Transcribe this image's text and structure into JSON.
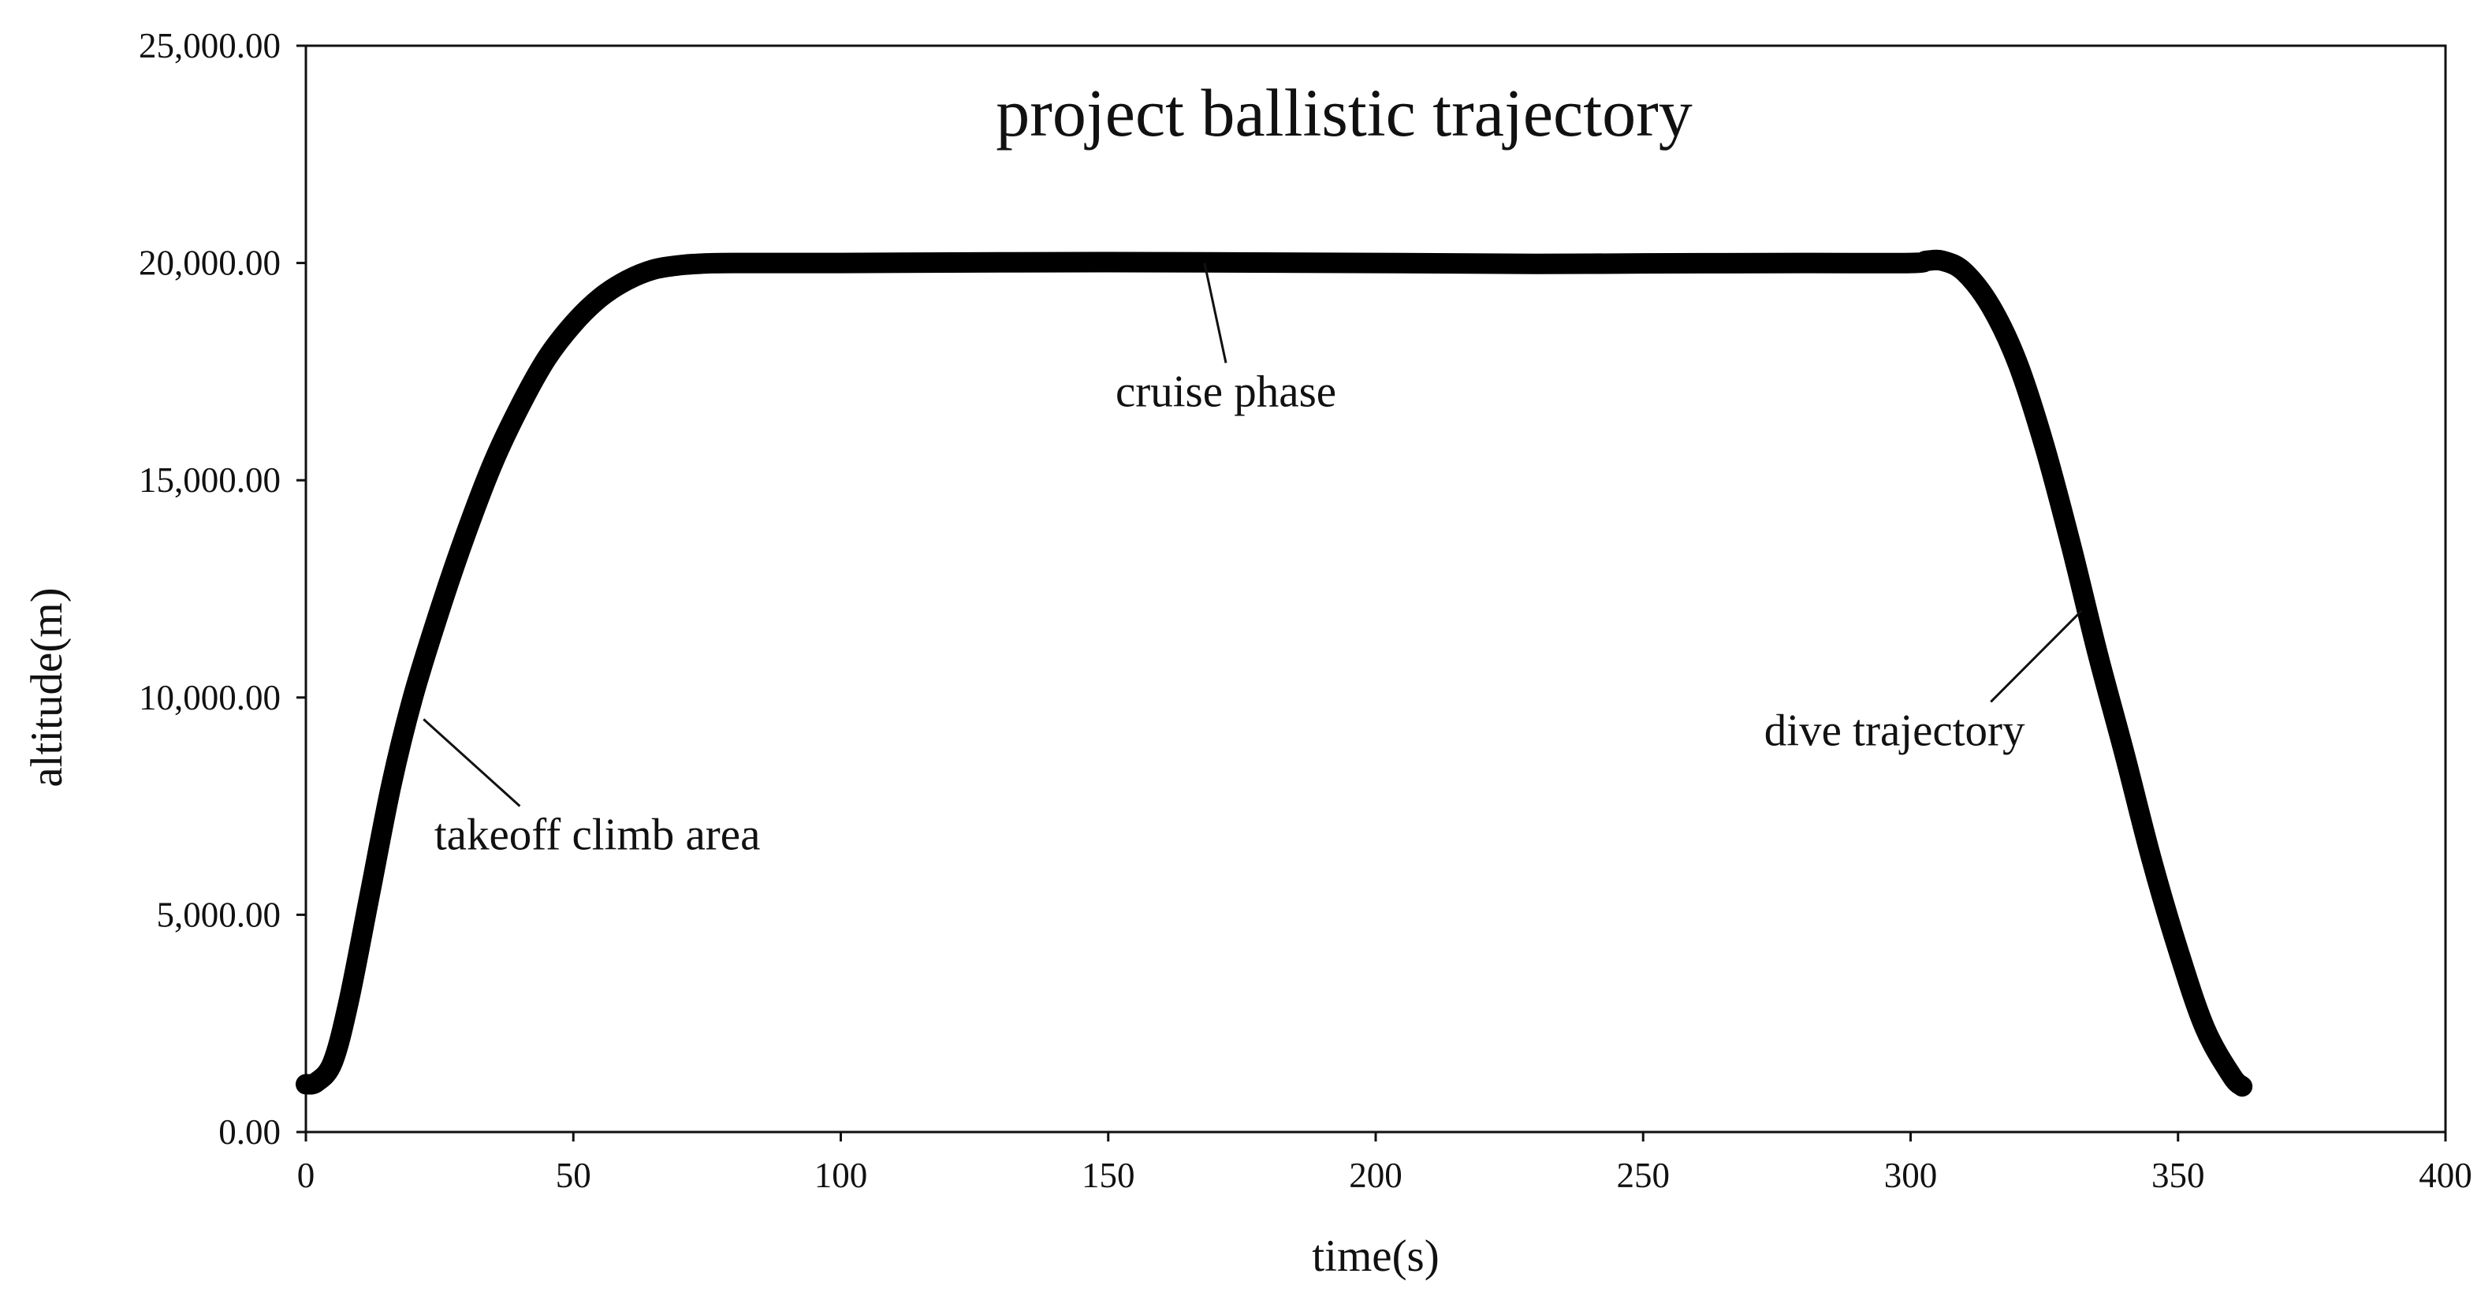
{
  "chart_data": {
    "type": "line",
    "title": "project ballistic trajectory",
    "xlabel": "time(s)",
    "ylabel": "altitude(m)",
    "xlim": [
      0,
      400
    ],
    "ylim": [
      0,
      25000
    ],
    "xticks": [
      0,
      50,
      100,
      150,
      200,
      250,
      300,
      350,
      400
    ],
    "xtick_labels": [
      "0",
      "50",
      "100",
      "150",
      "200",
      "250",
      "300",
      "350",
      "400"
    ],
    "yticks": [
      0,
      5000,
      10000,
      15000,
      20000,
      25000
    ],
    "ytick_labels": [
      "0.00",
      "5,000.00",
      "10,000.00",
      "15,000.00",
      "20,000.00",
      "25,000.00"
    ],
    "grid": false,
    "legend": "none",
    "line_color": "#000000",
    "series": [
      {
        "x": [
          0,
          2,
          5,
          8,
          12,
          16,
          20,
          25,
          30,
          35,
          40,
          45,
          50,
          55,
          60,
          65,
          70,
          75,
          80,
          100,
          150,
          200,
          230,
          250,
          280,
          300,
          303,
          306,
          310,
          315,
          320,
          325,
          330,
          335,
          340,
          345,
          350,
          355,
          360,
          362
        ],
        "y": [
          1100,
          1150,
          1600,
          3000,
          5500,
          8000,
          10000,
          12000,
          13800,
          15400,
          16700,
          17800,
          18600,
          19200,
          19600,
          19850,
          19950,
          19990,
          20000,
          20000,
          20020,
          20000,
          19980,
          19990,
          20000,
          20000,
          20050,
          20050,
          19800,
          19000,
          17700,
          15800,
          13500,
          11000,
          8700,
          6300,
          4200,
          2400,
          1300,
          1050
        ]
      }
    ],
    "annotations": [
      {
        "text": "takeoff climb area",
        "x": 22,
        "y": 9500,
        "leader_to": [
          40,
          7500
        ],
        "text_at": [
          24,
          6500
        ]
      },
      {
        "text": "cruise phase",
        "x": 168,
        "y": 20000,
        "leader_to": [
          172,
          17700
        ],
        "text_at": [
          172,
          16700
        ]
      },
      {
        "text": "dive trajectory",
        "x": 332,
        "y": 12000,
        "leader_to": [
          315,
          9900
        ],
        "text_at": [
          297,
          8900
        ]
      }
    ]
  }
}
